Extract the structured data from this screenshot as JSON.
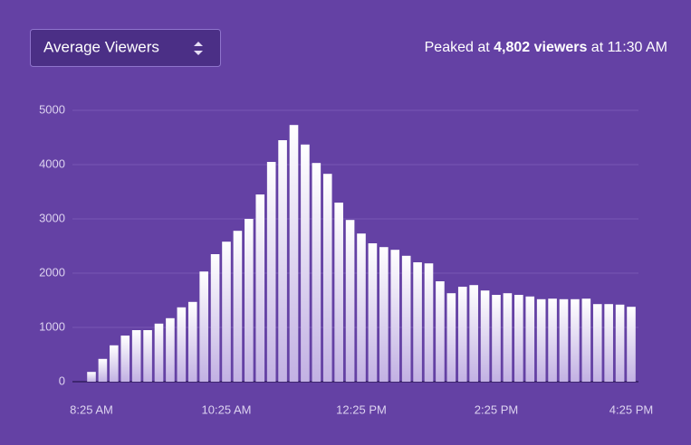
{
  "chart_data": {
    "type": "bar",
    "selector": "Average Viewers",
    "annotation": [
      "Peaked at",
      "4,802 viewers",
      "at 11:30 AM"
    ],
    "categories": [
      "8:25 AM",
      null,
      null,
      null,
      null,
      null,
      null,
      null,
      null,
      null,
      null,
      null,
      "10:25 AM",
      null,
      null,
      null,
      null,
      null,
      null,
      null,
      null,
      null,
      null,
      null,
      "12:25 PM",
      null,
      null,
      null,
      null,
      null,
      null,
      null,
      null,
      null,
      null,
      null,
      "2:25 PM",
      null,
      null,
      null,
      null,
      null,
      null,
      null,
      null,
      null,
      null,
      null,
      "4:25 PM"
    ],
    "values": [
      180,
      420,
      670,
      850,
      950,
      950,
      1070,
      1170,
      1370,
      1470,
      2030,
      2350,
      2580,
      2780,
      3000,
      3450,
      4050,
      4450,
      4730,
      4370,
      4030,
      3830,
      3300,
      2980,
      2730,
      2550,
      2480,
      2430,
      2320,
      2200,
      2180,
      1850,
      1630,
      1750,
      1780,
      1680,
      1600,
      1630,
      1600,
      1570,
      1520,
      1530,
      1520,
      1520,
      1530,
      1430,
      1430,
      1420,
      1380
    ],
    "ylim": [
      0,
      5000
    ],
    "yticks": [
      0,
      1000,
      2000,
      3000,
      4000,
      5000
    ],
    "grid": true
  }
}
